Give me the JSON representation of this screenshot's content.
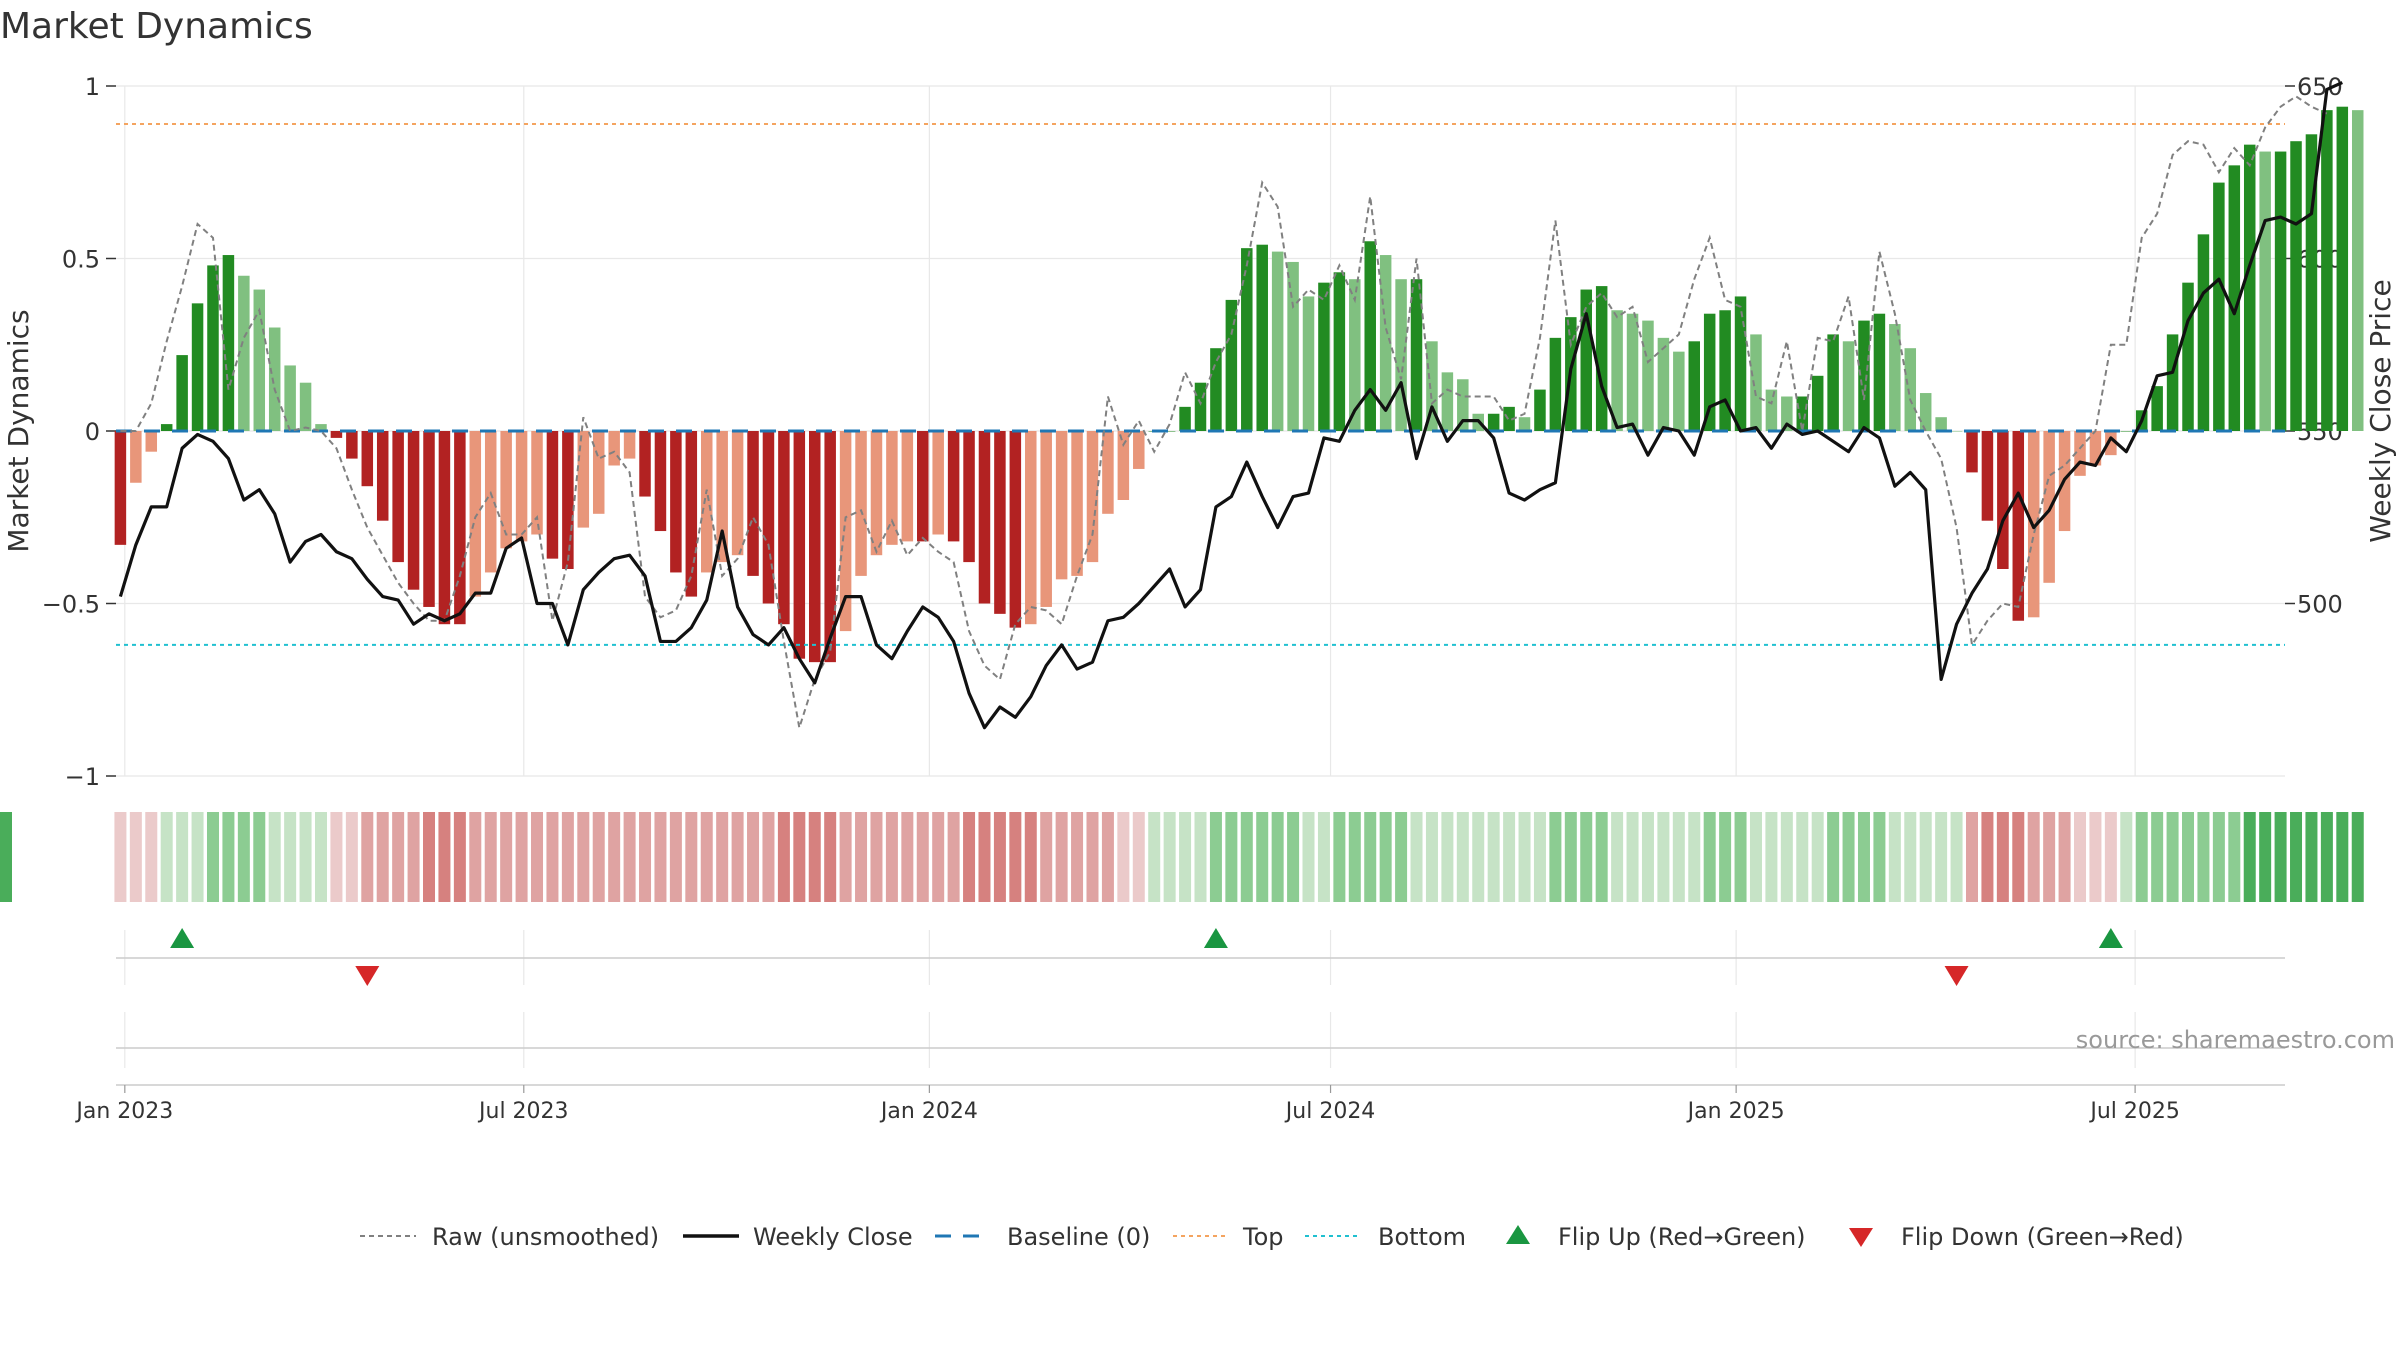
{
  "chart_data": {
    "type": "bar",
    "title": "Market Dynamics",
    "ylabel": "Market Dynamics",
    "y2label": "Weekly Close Price",
    "ylim": [
      -1,
      1
    ],
    "y2lim": [
      450,
      650
    ],
    "yticks": [
      1,
      0.5,
      0,
      -0.5,
      -1
    ],
    "ytick_labels": [
      "1",
      "0.5",
      "0",
      "−0.5",
      "−1"
    ],
    "y2ticks": [
      650,
      600,
      550,
      500
    ],
    "y2tick_labels": [
      "650",
      "600",
      "550",
      "500"
    ],
    "x_range": [
      "2022-12-28",
      "2025-09-07"
    ],
    "x_tick_labels": [
      {
        "date": "2023-01-01",
        "label": "Jan 2023"
      },
      {
        "date": "2023-07-01",
        "label": "Jul 2023"
      },
      {
        "date": "2024-01-01",
        "label": "Jan 2024"
      },
      {
        "date": "2024-07-01",
        "label": "Jul 2024"
      },
      {
        "date": "2025-01-01",
        "label": "Jan 2025"
      },
      {
        "date": "2025-07-01",
        "label": "Jul 2025"
      }
    ],
    "start_date": "2022-12-30",
    "top_level": 0.89,
    "bottom_level": -0.62,
    "baseline": 0,
    "series": [
      {
        "name": "Market Dynamics",
        "values": [
          -0.33,
          -0.15,
          -0.06,
          0.02,
          0.22,
          0.37,
          0.48,
          0.51,
          0.45,
          0.41,
          0.3,
          0.19,
          0.14,
          0.02,
          -0.02,
          -0.08,
          -0.16,
          -0.26,
          -0.38,
          -0.46,
          -0.51,
          -0.56,
          -0.56,
          -0.48,
          -0.41,
          -0.34,
          -0.32,
          -0.3,
          -0.37,
          -0.4,
          -0.28,
          -0.24,
          -0.1,
          -0.08,
          -0.19,
          -0.29,
          -0.41,
          -0.48,
          -0.41,
          -0.38,
          -0.36,
          -0.42,
          -0.5,
          -0.56,
          -0.66,
          -0.67,
          -0.67,
          -0.58,
          -0.42,
          -0.36,
          -0.33,
          -0.32,
          -0.32,
          -0.3,
          -0.32,
          -0.38,
          -0.5,
          -0.53,
          -0.57,
          -0.56,
          -0.51,
          -0.43,
          -0.42,
          -0.38,
          -0.24,
          -0.2,
          -0.11,
          0.0,
          0.0,
          0.07,
          0.14,
          0.24,
          0.38,
          0.53,
          0.54,
          0.52,
          0.49,
          0.39,
          0.43,
          0.46,
          0.44,
          0.55,
          0.51,
          0.44,
          0.44,
          0.26,
          0.17,
          0.15,
          0.05,
          0.05,
          0.07,
          0.04,
          0.12,
          0.27,
          0.33,
          0.41,
          0.42,
          0.35,
          0.34,
          0.32,
          0.27,
          0.23,
          0.26,
          0.34,
          0.35,
          0.39,
          0.28,
          0.12,
          0.1,
          0.1,
          0.16,
          0.28,
          0.26,
          0.32,
          0.34,
          0.31,
          0.24,
          0.11,
          0.04,
          0.0,
          -0.12,
          -0.26,
          -0.4,
          -0.55,
          -0.54,
          -0.44,
          -0.29,
          -0.13,
          -0.1,
          -0.07,
          0.0,
          0.06,
          0.13,
          0.28,
          0.43,
          0.57,
          0.72,
          0.77,
          0.83,
          0.81,
          0.81,
          0.84,
          0.86,
          0.93,
          0.94,
          0.93
        ]
      },
      {
        "name": "Raw (unsmoothed)",
        "values": [
          0.0,
          0.0,
          0.08,
          0.26,
          0.42,
          0.6,
          0.56,
          0.12,
          0.27,
          0.35,
          0.12,
          0.0,
          0.01,
          0.0,
          -0.05,
          -0.17,
          -0.28,
          -0.36,
          -0.44,
          -0.5,
          -0.55,
          -0.55,
          -0.42,
          -0.25,
          -0.18,
          -0.3,
          -0.3,
          -0.25,
          -0.55,
          -0.38,
          0.04,
          -0.08,
          -0.06,
          -0.12,
          -0.48,
          -0.54,
          -0.52,
          -0.42,
          -0.17,
          -0.42,
          -0.37,
          -0.25,
          -0.33,
          -0.61,
          -0.86,
          -0.72,
          -0.64,
          -0.25,
          -0.23,
          -0.35,
          -0.26,
          -0.36,
          -0.31,
          -0.35,
          -0.38,
          -0.58,
          -0.68,
          -0.72,
          -0.56,
          -0.51,
          -0.52,
          -0.56,
          -0.42,
          -0.3,
          0.1,
          -0.04,
          0.03,
          -0.06,
          0.02,
          0.17,
          0.08,
          0.2,
          0.28,
          0.48,
          0.72,
          0.65,
          0.36,
          0.41,
          0.38,
          0.48,
          0.38,
          0.68,
          0.3,
          0.15,
          0.5,
          0.08,
          0.12,
          0.1,
          0.1,
          0.1,
          0.03,
          0.05,
          0.27,
          0.61,
          0.25,
          0.36,
          0.4,
          0.33,
          0.36,
          0.2,
          0.24,
          0.28,
          0.44,
          0.56,
          0.38,
          0.36,
          0.1,
          0.08,
          0.26,
          0.0,
          0.27,
          0.26,
          0.39,
          0.09,
          0.52,
          0.34,
          0.09,
          0.0,
          -0.08,
          -0.28,
          -0.62,
          -0.55,
          -0.5,
          -0.51,
          -0.3,
          -0.13,
          -0.1,
          -0.05,
          0.0,
          0.25,
          0.25,
          0.56,
          0.63,
          0.8,
          0.84,
          0.83,
          0.75,
          0.82,
          0.77,
          0.88,
          0.94,
          0.97,
          0.94,
          0.92
        ]
      },
      {
        "name": "Weekly Close",
        "values": [
          502,
          517,
          528,
          528,
          545,
          549,
          547,
          542,
          530,
          533,
          526,
          512,
          518,
          520,
          515,
          513,
          507,
          502,
          501,
          494,
          497,
          495,
          497,
          503,
          503,
          516,
          519,
          500,
          500,
          488,
          504,
          509,
          513,
          514,
          508,
          489,
          489,
          493,
          501,
          521,
          499,
          491,
          488,
          493,
          484,
          477,
          490,
          502,
          502,
          488,
          484,
          492,
          499,
          496,
          489,
          474,
          464,
          470,
          467,
          473,
          482,
          488,
          481,
          483,
          495,
          496,
          500,
          505,
          510,
          499,
          504,
          528,
          531,
          541,
          531,
          522,
          531,
          532,
          548,
          547,
          556,
          562,
          556,
          564,
          542,
          557,
          547,
          553,
          553,
          548,
          532,
          530,
          533,
          535,
          568,
          584,
          563,
          551,
          552,
          543,
          551,
          550,
          543,
          557,
          559,
          550,
          551,
          545,
          552,
          549,
          550,
          547,
          544,
          551,
          548,
          534,
          538,
          533,
          478,
          494,
          503,
          510,
          524,
          532,
          522,
          527,
          536,
          541,
          540,
          548,
          544,
          553,
          566,
          567,
          582,
          590,
          594,
          584,
          598,
          611,
          612,
          610,
          613,
          649,
          651
        ]
      }
    ],
    "regime": {
      "name": "regime strip",
      "levels": [
        -1,
        -1,
        -1,
        1,
        1,
        1,
        2,
        2,
        2,
        2,
        1,
        1,
        1,
        1,
        -1,
        -1,
        -2,
        -2,
        -2,
        -2,
        -3,
        -3,
        -3,
        -2,
        -2,
        -2,
        -2,
        -2,
        -2,
        -2,
        -2,
        -2,
        -2,
        -2,
        -2,
        -2,
        -2,
        -2,
        -2,
        -2,
        -2,
        -2,
        -2,
        -3,
        -3,
        -3,
        -3,
        -2,
        -2,
        -2,
        -2,
        -2,
        -2,
        -2,
        -2,
        -3,
        -3,
        -3,
        -3,
        -3,
        -2,
        -2,
        -2,
        -2,
        -2,
        -1,
        -1,
        1,
        1,
        1,
        1,
        2,
        2,
        2,
        2,
        2,
        2,
        1,
        1,
        2,
        2,
        2,
        2,
        2,
        1,
        1,
        1,
        1,
        1,
        1,
        1,
        1,
        1,
        2,
        2,
        2,
        2,
        1,
        1,
        1,
        1,
        1,
        1,
        2,
        2,
        2,
        1,
        1,
        1,
        1,
        1,
        2,
        2,
        2,
        2,
        1,
        1,
        1,
        1,
        1,
        -2,
        -3,
        -3,
        -3,
        -2,
        -2,
        -2,
        -1,
        -1,
        -1,
        1,
        2,
        2,
        2,
        2,
        2,
        2,
        2,
        3,
        3,
        3,
        3,
        3,
        3,
        3,
        3,
        3,
        3
      ],
      "colors": {
        "-3": "#d6817f",
        "-2": "#dfa3a2",
        "-1": "#ebcaca",
        "1": "#c6e3c6",
        "2": "#8ccc92",
        "3": "#4aad5a"
      }
    },
    "flips": [
      {
        "type": "up",
        "date": "2023-01-27"
      },
      {
        "type": "down",
        "date": "2023-04-21"
      },
      {
        "type": "up",
        "date": "2024-05-10"
      },
      {
        "type": "down",
        "date": "2025-04-11"
      },
      {
        "type": "up",
        "date": "2025-06-20"
      }
    ],
    "legend": {
      "placement": "bottom-center",
      "entries": [
        {
          "label": "Raw (unsmoothed)",
          "style": "dashed-gray"
        },
        {
          "label": "Weekly Close",
          "style": "solid-black"
        },
        {
          "label": "Baseline (0)",
          "style": "dashed-blue"
        },
        {
          "label": "Top",
          "style": "dotted-orange"
        },
        {
          "label": "Bottom",
          "style": "dotted-cyan"
        },
        {
          "label": "Flip Up (Red→Green)",
          "style": "triangle-up-green"
        },
        {
          "label": "Flip Down (Green→Red)",
          "style": "triangle-down-red"
        }
      ]
    },
    "source_text": "source: sharemaestro.com",
    "colors": {
      "bar_strong_green": "#228b22",
      "bar_light_green": "#80c080",
      "bar_strong_red": "#b22222",
      "bar_light_red": "#e8967a",
      "price_line": "#111111",
      "raw_line": "#808080",
      "baseline": "#1f77b4",
      "top_line": "#f4a460",
      "bottom_line": "#20c0d0",
      "flip_up": "#1a9641",
      "flip_down": "#d62728",
      "grid": "#e8e8e8"
    }
  }
}
